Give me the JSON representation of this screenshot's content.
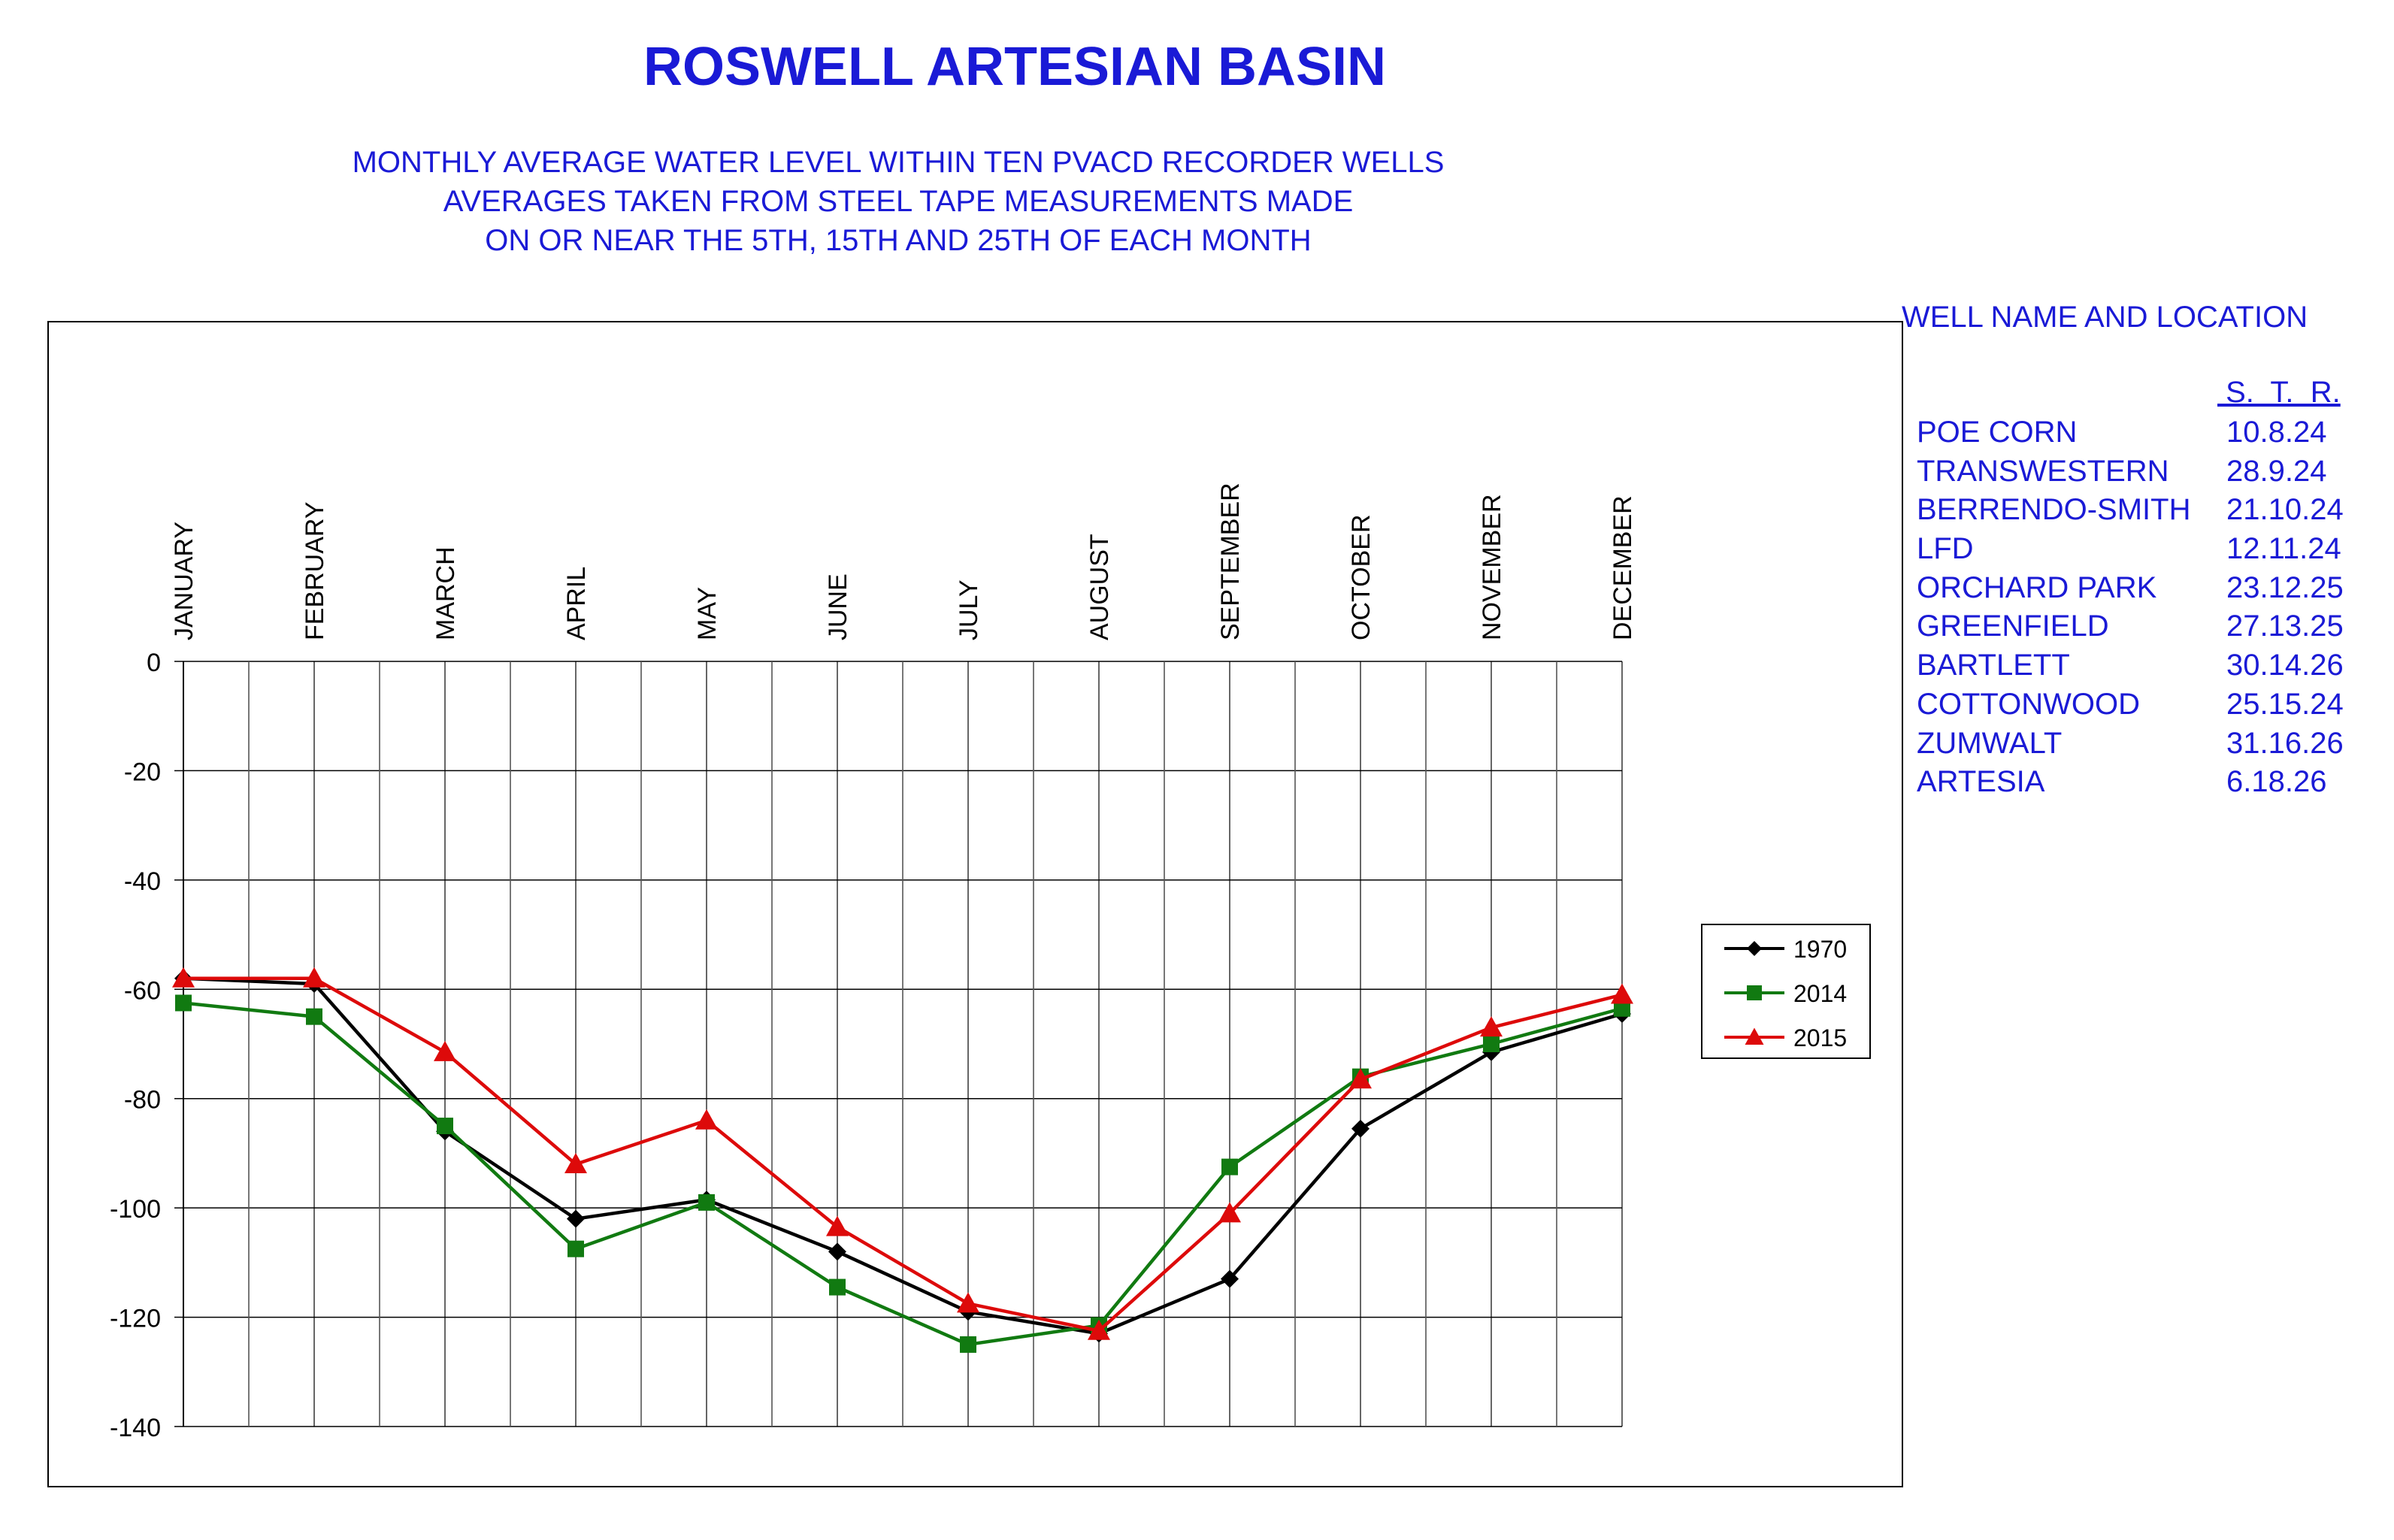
{
  "header": {
    "title": "ROSWELL ARTESIAN BASIN",
    "subtitle_lines": [
      "MONTHLY AVERAGE WATER LEVEL WITHIN TEN PVACD RECORDER WELLS",
      "AVERAGES TAKEN FROM STEEL TAPE MEASUREMENTS MADE",
      "ON OR NEAR THE 5TH, 15TH AND 25TH OF EACH MONTH"
    ]
  },
  "wells_panel": {
    "heading": "WELL NAME AND LOCATION",
    "str_header": " S.  T.  R.",
    "wells": [
      {
        "name": "POE CORN",
        "location": "10.8.24"
      },
      {
        "name": "TRANSWESTERN",
        "location": "28.9.24"
      },
      {
        "name": "BERRENDO-SMITH",
        "location": "21.10.24"
      },
      {
        "name": "LFD",
        "location": "12.11.24"
      },
      {
        "name": "ORCHARD PARK",
        "location": "23.12.25"
      },
      {
        "name": "GREENFIELD",
        "location": "27.13.25"
      },
      {
        "name": "BARTLETT",
        "location": "30.14.26"
      },
      {
        "name": "COTTONWOOD",
        "location": "25.15.24"
      },
      {
        "name": "ZUMWALT",
        "location": "31.16.26"
      },
      {
        "name": "ARTESIA",
        "location": "6.18.26"
      }
    ]
  },
  "chart_data": {
    "type": "line",
    "title": "ROSWELL ARTESIAN BASIN",
    "categories": [
      "JANUARY",
      "FEBRUARY",
      "MARCH",
      "APRIL",
      "MAY",
      "JUNE",
      "JULY",
      "AUGUST",
      "SEPTEMBER",
      "OCTOBER",
      "NOVEMBER",
      "DECEMBER"
    ],
    "ylim": [
      -140,
      0
    ],
    "yticks": [
      0,
      -20,
      -40,
      -60,
      -80,
      -100,
      -120,
      -140
    ],
    "ytick_labels": [
      "0",
      "-20",
      "-40",
      "-60",
      "-80",
      "-100",
      "-120",
      "-140"
    ],
    "grid": true,
    "legend_position": "right",
    "series": [
      {
        "name": "1970",
        "color": "#000000",
        "marker": "diamond",
        "values": [
          -58,
          -59,
          -86,
          -102,
          -98.5,
          -108,
          -119,
          -123,
          -113,
          -85.5,
          -71.5,
          -64.5
        ]
      },
      {
        "name": "2014",
        "color": "#117a11",
        "marker": "square",
        "values": [
          -62.5,
          -65,
          -85,
          -107.5,
          -99,
          -114.5,
          -125,
          -121.5,
          -92.5,
          -76,
          -70,
          -63.5
        ]
      },
      {
        "name": "2015",
        "color": "#dd0a0a",
        "marker": "triangle",
        "values": [
          -58,
          -58,
          -71.5,
          -92,
          -84,
          -103.5,
          -117.5,
          -122.5,
          -101,
          -76.5,
          -67,
          -61
        ]
      }
    ]
  }
}
